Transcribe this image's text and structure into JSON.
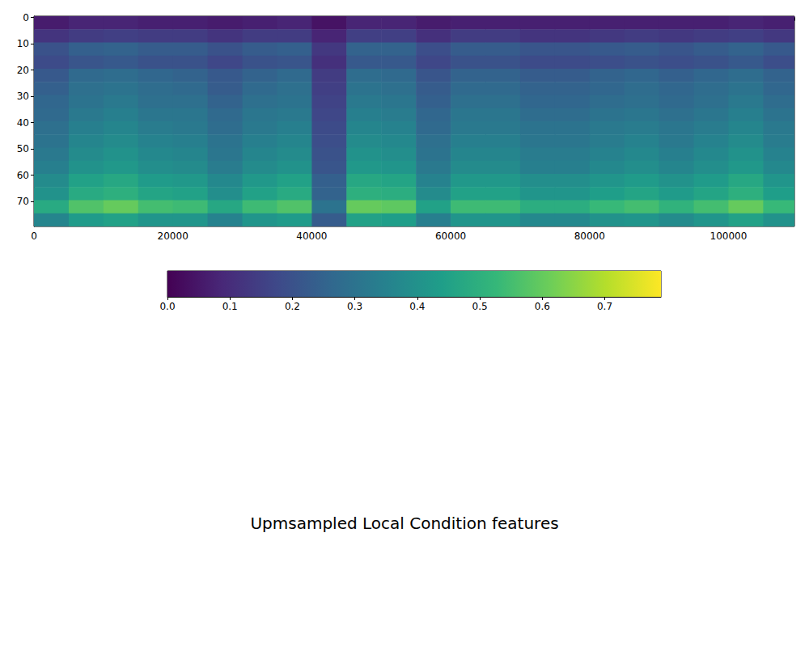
{
  "chart_data": {
    "type": "heatmap",
    "title": "Upmsampled Local Condition features",
    "xlim": [
      0,
      109500
    ],
    "ylim": [
      79.5,
      -0.5
    ],
    "xticks": [
      0,
      20000,
      40000,
      60000,
      80000,
      100000
    ],
    "yticks": [
      0,
      10,
      20,
      30,
      40,
      50,
      60,
      70
    ],
    "grid": false,
    "x_bins": [
      0,
      5000,
      10000,
      15000,
      20000,
      25000,
      30000,
      35000,
      40000,
      45000,
      50000,
      55000,
      60000,
      65000,
      70000,
      75000,
      80000,
      85000,
      90000,
      95000,
      100000,
      105000,
      109500
    ],
    "y_bins": [
      -0.5,
      4.5,
      9.5,
      14.5,
      19.5,
      24.5,
      29.5,
      34.5,
      39.5,
      44.5,
      49.5,
      54.5,
      59.5,
      64.5,
      69.5,
      74.5,
      79.5
    ],
    "values": [
      [
        0.06,
        0.08,
        0.08,
        0.07,
        0.07,
        0.06,
        0.07,
        0.08,
        0.04,
        0.08,
        0.08,
        0.06,
        0.07,
        0.07,
        0.07,
        0.07,
        0.07,
        0.07,
        0.07,
        0.07,
        0.08,
        0.07
      ],
      [
        0.12,
        0.14,
        0.15,
        0.14,
        0.14,
        0.12,
        0.14,
        0.14,
        0.08,
        0.15,
        0.15,
        0.11,
        0.14,
        0.14,
        0.12,
        0.12,
        0.13,
        0.14,
        0.13,
        0.14,
        0.15,
        0.13
      ],
      [
        0.2,
        0.24,
        0.25,
        0.23,
        0.23,
        0.2,
        0.23,
        0.24,
        0.13,
        0.25,
        0.25,
        0.19,
        0.23,
        0.23,
        0.21,
        0.21,
        0.22,
        0.23,
        0.21,
        0.23,
        0.25,
        0.22
      ],
      [
        0.18,
        0.21,
        0.22,
        0.2,
        0.2,
        0.17,
        0.2,
        0.21,
        0.11,
        0.22,
        0.22,
        0.17,
        0.2,
        0.2,
        0.18,
        0.18,
        0.19,
        0.2,
        0.19,
        0.2,
        0.22,
        0.19
      ],
      [
        0.22,
        0.27,
        0.28,
        0.26,
        0.25,
        0.22,
        0.25,
        0.27,
        0.14,
        0.28,
        0.27,
        0.21,
        0.25,
        0.25,
        0.23,
        0.23,
        0.25,
        0.26,
        0.24,
        0.26,
        0.28,
        0.25
      ],
      [
        0.24,
        0.29,
        0.3,
        0.28,
        0.27,
        0.23,
        0.27,
        0.29,
        0.15,
        0.3,
        0.29,
        0.23,
        0.27,
        0.27,
        0.25,
        0.25,
        0.26,
        0.28,
        0.26,
        0.28,
        0.3,
        0.26
      ],
      [
        0.26,
        0.3,
        0.32,
        0.29,
        0.29,
        0.25,
        0.29,
        0.3,
        0.16,
        0.32,
        0.31,
        0.24,
        0.29,
        0.29,
        0.26,
        0.26,
        0.28,
        0.29,
        0.27,
        0.29,
        0.32,
        0.28
      ],
      [
        0.27,
        0.32,
        0.34,
        0.31,
        0.31,
        0.27,
        0.31,
        0.32,
        0.17,
        0.34,
        0.33,
        0.26,
        0.31,
        0.31,
        0.28,
        0.28,
        0.3,
        0.31,
        0.29,
        0.31,
        0.34,
        0.3
      ],
      [
        0.29,
        0.34,
        0.36,
        0.33,
        0.32,
        0.28,
        0.32,
        0.34,
        0.18,
        0.36,
        0.35,
        0.27,
        0.32,
        0.32,
        0.3,
        0.3,
        0.32,
        0.33,
        0.31,
        0.33,
        0.36,
        0.32
      ],
      [
        0.3,
        0.36,
        0.38,
        0.35,
        0.34,
        0.3,
        0.34,
        0.36,
        0.19,
        0.38,
        0.37,
        0.29,
        0.34,
        0.34,
        0.31,
        0.31,
        0.33,
        0.35,
        0.32,
        0.35,
        0.38,
        0.33
      ],
      [
        0.32,
        0.38,
        0.4,
        0.37,
        0.36,
        0.31,
        0.36,
        0.38,
        0.2,
        0.4,
        0.39,
        0.3,
        0.36,
        0.36,
        0.33,
        0.33,
        0.35,
        0.37,
        0.34,
        0.37,
        0.4,
        0.35
      ],
      [
        0.34,
        0.4,
        0.42,
        0.39,
        0.38,
        0.33,
        0.38,
        0.4,
        0.21,
        0.42,
        0.41,
        0.32,
        0.38,
        0.38,
        0.34,
        0.34,
        0.37,
        0.39,
        0.36,
        0.39,
        0.42,
        0.37
      ],
      [
        0.38,
        0.45,
        0.47,
        0.43,
        0.42,
        0.37,
        0.42,
        0.45,
        0.24,
        0.47,
        0.46,
        0.35,
        0.42,
        0.42,
        0.39,
        0.39,
        0.41,
        0.43,
        0.4,
        0.43,
        0.47,
        0.41
      ],
      [
        0.4,
        0.48,
        0.5,
        0.46,
        0.45,
        0.39,
        0.45,
        0.48,
        0.25,
        0.5,
        0.49,
        0.38,
        0.45,
        0.45,
        0.41,
        0.41,
        0.44,
        0.46,
        0.43,
        0.46,
        0.5,
        0.44
      ],
      [
        0.48,
        0.57,
        0.6,
        0.55,
        0.54,
        0.47,
        0.54,
        0.57,
        0.3,
        0.6,
        0.59,
        0.45,
        0.54,
        0.54,
        0.49,
        0.49,
        0.53,
        0.55,
        0.51,
        0.55,
        0.6,
        0.53
      ],
      [
        0.36,
        0.43,
        0.45,
        0.41,
        0.41,
        0.35,
        0.41,
        0.43,
        0.23,
        0.45,
        0.44,
        0.34,
        0.41,
        0.41,
        0.37,
        0.37,
        0.4,
        0.41,
        0.38,
        0.41,
        0.45,
        0.4
      ]
    ],
    "colorbar": {
      "range": [
        0,
        0.79
      ],
      "ticks": [
        {
          "value": 0,
          "label": "0.0"
        },
        0.1,
        0.2,
        0.3,
        0.4,
        0.5,
        0.6,
        0.7
      ]
    }
  }
}
